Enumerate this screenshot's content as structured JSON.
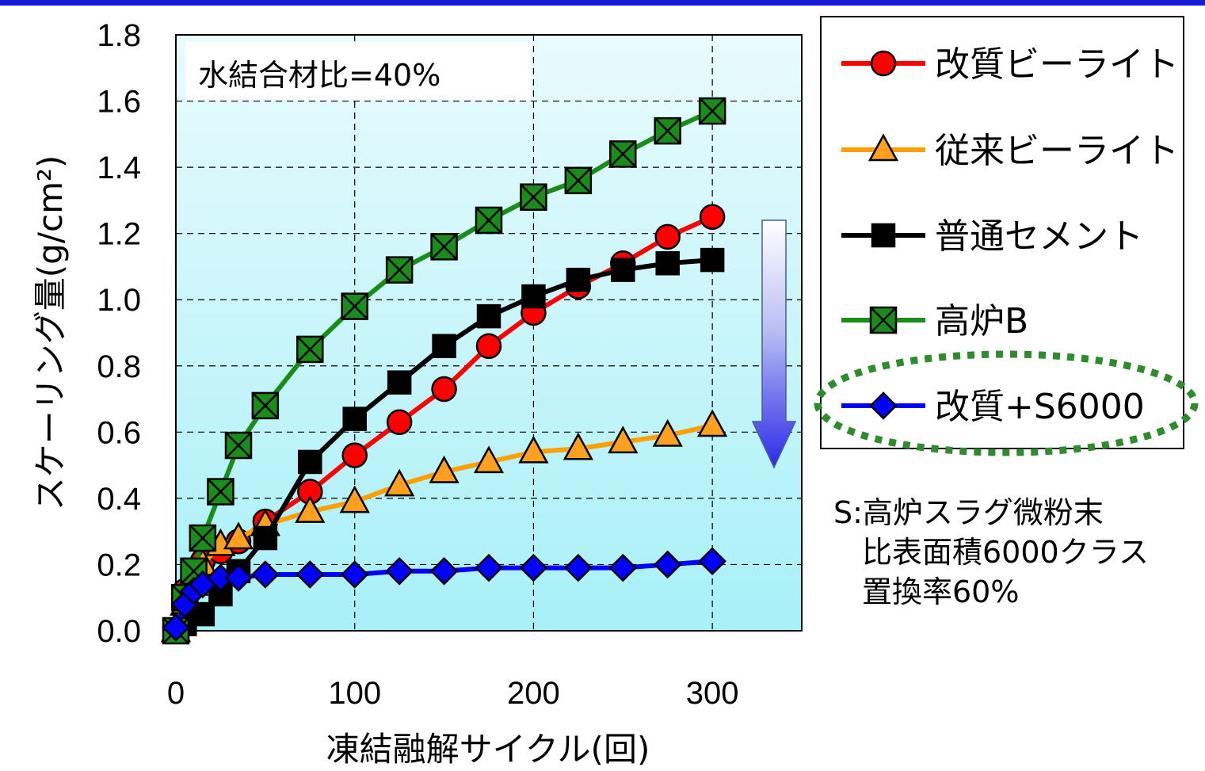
{
  "colors": {
    "top_border": "#1a1adc",
    "plot_bg_top": "#e9fbfd",
    "plot_bg_bottom": "#a8f0f8"
  },
  "chart_data": {
    "type": "line",
    "xlabel": "凍結融解サイクル(回)",
    "ylabel": "スケーリング量(g/cm²)",
    "xlim": [
      0,
      350
    ],
    "ylim": [
      0,
      1.8
    ],
    "xticks": [
      "0",
      "100",
      "200",
      "300"
    ],
    "yticks": [
      "0.0",
      "0.2",
      "0.4",
      "0.6",
      "0.8",
      "1.0",
      "1.2",
      "1.4",
      "1.6",
      "1.8"
    ],
    "grid": true,
    "legend_position": "right",
    "annotation": "水結合材比=40%",
    "note_lines": [
      "S:高炉スラグ微粉末",
      "比表面積6000クラス",
      "置換率60%"
    ],
    "series": [
      {
        "name": "改質ビーライト",
        "color": "#ff0000",
        "marker": "circle",
        "marker_fill": "#ff0000",
        "x": [
          0,
          5,
          10,
          15,
          25,
          35,
          50,
          75,
          100,
          125,
          150,
          175,
          200,
          225,
          250,
          275,
          300
        ],
        "y": [
          0.0,
          0.12,
          0.17,
          0.21,
          0.24,
          0.27,
          0.33,
          0.42,
          0.53,
          0.63,
          0.73,
          0.86,
          0.96,
          1.04,
          1.11,
          1.19,
          1.25
        ]
      },
      {
        "name": "従来ビーライト",
        "color": "#ffa000",
        "marker": "triangle",
        "marker_fill": "#ffa020",
        "x": [
          0,
          5,
          10,
          15,
          25,
          35,
          50,
          75,
          100,
          125,
          150,
          175,
          200,
          225,
          250,
          275,
          300
        ],
        "y": [
          0.0,
          0.08,
          0.14,
          0.2,
          0.26,
          0.28,
          0.32,
          0.36,
          0.39,
          0.44,
          0.48,
          0.51,
          0.54,
          0.55,
          0.57,
          0.59,
          0.62
        ]
      },
      {
        "name": "普通セメント",
        "color": "#000000",
        "marker": "square",
        "marker_fill": "#000000",
        "x": [
          0,
          5,
          15,
          25,
          35,
          50,
          75,
          100,
          125,
          150,
          175,
          200,
          225,
          250,
          275,
          300
        ],
        "y": [
          0.0,
          0.02,
          0.05,
          0.11,
          0.18,
          0.28,
          0.51,
          0.64,
          0.75,
          0.86,
          0.95,
          1.01,
          1.06,
          1.09,
          1.11,
          1.12
        ]
      },
      {
        "name": "高炉B",
        "color": "#1a8c1a",
        "marker": "x-square",
        "marker_fill": "#1a8c1a",
        "x": [
          0,
          5,
          10,
          15,
          25,
          35,
          50,
          75,
          100,
          125,
          150,
          175,
          200,
          225,
          250,
          275,
          300
        ],
        "y": [
          0.0,
          0.1,
          0.18,
          0.28,
          0.42,
          0.56,
          0.68,
          0.85,
          0.98,
          1.09,
          1.16,
          1.24,
          1.31,
          1.36,
          1.44,
          1.51,
          1.57
        ]
      },
      {
        "name": "改質+S6000",
        "color": "#0000ff",
        "marker": "diamond",
        "marker_fill": "#0000ff",
        "x": [
          0,
          5,
          10,
          15,
          25,
          35,
          50,
          75,
          100,
          125,
          150,
          175,
          200,
          225,
          250,
          275,
          300
        ],
        "y": [
          0.01,
          0.08,
          0.12,
          0.14,
          0.16,
          0.16,
          0.17,
          0.17,
          0.17,
          0.18,
          0.18,
          0.19,
          0.19,
          0.19,
          0.19,
          0.2,
          0.21
        ]
      }
    ]
  }
}
